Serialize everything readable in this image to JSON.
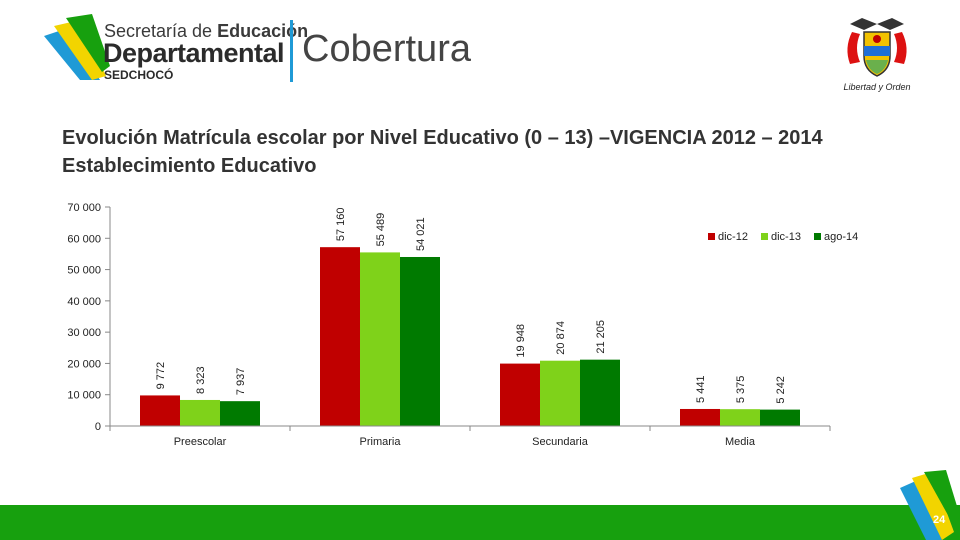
{
  "header": {
    "logo_line1_normal": "Secretaría de ",
    "logo_line1_bold": "Educación",
    "logo_line2": "Departamental",
    "logo_line3": "SEDCHOCÓ",
    "section_title": "Cobertura",
    "crest_caption": "Libertad y Orden",
    "crest_icon": "colombia-coat-of-arms-icon",
    "logo_icon": "swoosh-logo-icon"
  },
  "slide": {
    "title": "Evolución Matrícula escolar por Nivel Educativo (0 – 13) –VIGENCIA 2012 – 2014 Establecimiento Educativo",
    "page_number": "24"
  },
  "colors": {
    "dic12": "#c00000",
    "dic13": "#7fd21a",
    "ago14": "#007a00",
    "footer": "#17a00e"
  },
  "chart_data": {
    "type": "bar",
    "categories": [
      "Preescolar",
      "Primaria",
      "Secundaria",
      "Media"
    ],
    "series": [
      {
        "name": "dic-12",
        "values": [
          9772,
          57160,
          19948,
          5441
        ],
        "labels": [
          "9 772",
          "57 160",
          "19 948",
          "5 441"
        ],
        "color": "#c00000"
      },
      {
        "name": "dic-13",
        "values": [
          8323,
          55489,
          20874,
          5375
        ],
        "labels": [
          "8 323",
          "55 489",
          "20 874",
          "5 375"
        ],
        "color": "#7fd21a"
      },
      {
        "name": "ago-14",
        "values": [
          7937,
          54021,
          21205,
          5242
        ],
        "labels": [
          "7 937",
          "54 021",
          "21 205",
          "5 242"
        ],
        "color": "#007a00"
      }
    ],
    "ylim": [
      0,
      70000
    ],
    "yticks": [
      0,
      10000,
      20000,
      30000,
      40000,
      50000,
      60000,
      70000
    ],
    "ytick_labels": [
      "0",
      "10 000",
      "20 000",
      "30 000",
      "40 000",
      "50 000",
      "60 000",
      "70 000"
    ],
    "legend_position": "top-right",
    "grid": false
  }
}
